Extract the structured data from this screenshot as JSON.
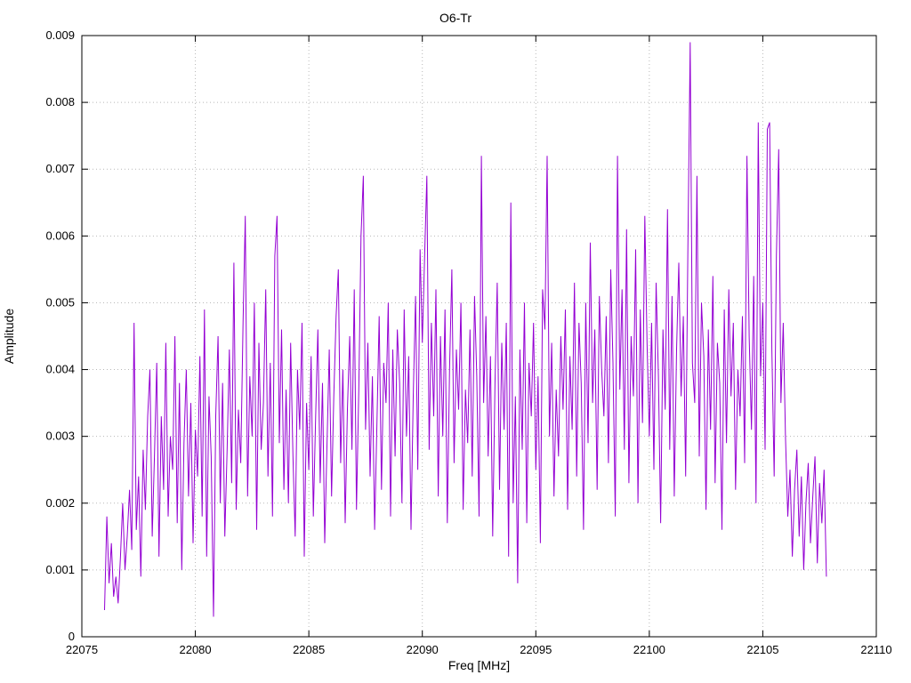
{
  "chart_data": {
    "type": "line",
    "title": "O6-Tr",
    "xlabel": "Freq [MHz]",
    "ylabel": "Amplitude",
    "xlim": [
      22075,
      22110
    ],
    "ylim": [
      0,
      0.009
    ],
    "xticks": [
      22075,
      22080,
      22085,
      22090,
      22095,
      22100,
      22105,
      22110
    ],
    "yticks": [
      0,
      0.001,
      0.002,
      0.003,
      0.004,
      0.005,
      0.006,
      0.007,
      0.008,
      0.009
    ],
    "ytick_labels": [
      "0",
      "0.001",
      "0.002",
      "0.003",
      "0.004",
      "0.005",
      "0.006",
      "0.007",
      "0.008",
      "0.009"
    ],
    "grid": "dotted",
    "legend": "none",
    "line_color": "#9400d3",
    "grid_color": "#b8b8b8",
    "axis_color": "#000000",
    "x_start": 22076.0,
    "x_step": 0.1,
    "y_scale": 0.0001,
    "y": [
      4,
      18,
      8,
      14,
      6,
      9,
      5,
      12,
      20,
      10,
      15,
      22,
      13,
      47,
      16,
      24,
      9,
      28,
      19,
      33,
      40,
      15,
      27,
      41,
      12,
      33,
      22,
      44,
      18,
      30,
      25,
      45,
      17,
      38,
      10,
      29,
      40,
      21,
      35,
      14,
      31,
      24,
      42,
      18,
      49,
      12,
      36,
      27,
      3,
      33,
      45,
      20,
      38,
      15,
      28,
      43,
      23,
      56,
      19,
      34,
      26,
      47,
      63,
      21,
      39,
      30,
      50,
      16,
      44,
      28,
      35,
      52,
      24,
      41,
      18,
      57,
      63,
      29,
      46,
      22,
      37,
      20,
      44,
      27,
      15,
      40,
      31,
      47,
      12,
      35,
      25,
      42,
      18,
      33,
      46,
      23,
      38,
      14,
      29,
      43,
      21,
      36,
      48,
      55,
      26,
      40,
      17,
      34,
      45,
      28,
      52,
      19,
      37,
      60,
      69,
      31,
      44,
      24,
      39,
      16,
      32,
      48,
      22,
      41,
      35,
      50,
      18,
      43,
      27,
      46,
      38,
      20,
      49,
      30,
      42,
      16,
      36,
      51,
      25,
      58,
      44,
      57,
      69,
      28,
      47,
      33,
      52,
      21,
      45,
      30,
      49,
      17,
      40,
      55,
      26,
      43,
      34,
      50,
      19,
      37,
      29,
      46,
      24,
      51,
      39,
      18,
      72,
      35,
      48,
      27,
      42,
      15,
      38,
      53,
      22,
      44,
      31,
      47,
      12,
      65,
      20,
      36,
      8,
      43,
      28,
      50,
      17,
      41,
      33,
      47,
      25,
      39,
      14,
      52,
      46,
      72,
      30,
      44,
      21,
      37,
      27,
      45,
      34,
      49,
      19,
      42,
      31,
      53,
      24,
      47,
      38,
      16,
      50,
      29,
      59,
      35,
      46,
      22,
      51,
      40,
      33,
      48,
      26,
      55,
      41,
      18,
      72,
      37,
      52,
      28,
      61,
      23,
      45,
      36,
      58,
      20,
      49,
      32,
      63,
      44,
      30,
      47,
      25,
      53,
      39,
      17,
      46,
      34,
      64,
      28,
      51,
      21,
      43,
      56,
      36,
      48,
      24,
      58,
      89,
      41,
      35,
      69,
      27,
      50,
      42,
      19,
      46,
      31,
      54,
      23,
      44,
      38,
      16,
      49,
      29,
      52,
      36,
      47,
      22,
      40,
      33,
      48,
      26,
      72,
      45,
      31,
      54,
      20,
      77,
      39,
      50,
      28,
      76,
      77,
      43,
      24,
      57,
      73,
      35,
      47,
      30,
      18,
      25,
      12,
      22,
      28,
      15,
      24,
      10,
      20,
      26,
      14,
      21,
      27,
      11,
      23,
      17,
      25,
      9
    ]
  }
}
